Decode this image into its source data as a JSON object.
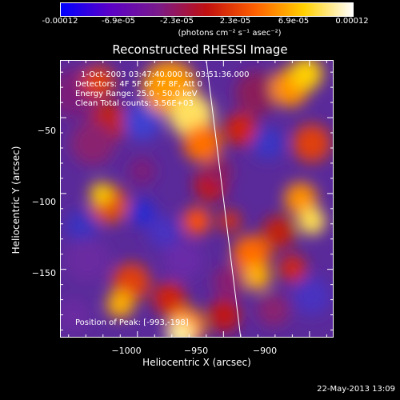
{
  "colorbar": {
    "ticks": [
      "-0.00012",
      "-6.9e-05",
      "-2.3e-05",
      "2.3e-05",
      "6.9e-05",
      "0.00012"
    ],
    "units": "(photons cm⁻² s⁻¹ asec⁻²)",
    "stops": [
      "#0000ff",
      "#5a00c8",
      "#7a1a8a",
      "#c01010",
      "#ff6000",
      "#ffd000",
      "#ffffff"
    ]
  },
  "chart_data": {
    "type": "heatmap",
    "title": "Reconstructed RHESSI Image",
    "xlabel": "Heliocentric X (arcsec)",
    "ylabel": "Heliocentric Y (arcsec)",
    "xlim": [
      -1045,
      -886
    ],
    "ylim": [
      -195,
      -12
    ],
    "xticks": [
      -1000,
      -950,
      -900
    ],
    "yticks": [
      -50,
      -100,
      -150
    ],
    "xtick_labels": [
      "−1000",
      "−950",
      "−900"
    ],
    "ytick_labels": [
      "−50",
      "−100",
      "−150"
    ],
    "colorbar_range": [
      -0.00012,
      0.00012
    ],
    "limb_line": [
      [
        -960,
        -12
      ],
      [
        -940,
        -195
      ]
    ],
    "annotations": {
      "time": "1-Oct-2003 03:47:40.000 to 03:51:36.000",
      "detectors": "Detectors: 4F 5F 6F 7F 8F, Att 0",
      "energy": "Energy Range: 25.0 - 50.0 keV",
      "clean": "Clean     Total counts: 3.56E+03",
      "peak": "Position of Peak: [-993,-198]"
    }
  },
  "footer": {
    "timestamp": "22-May-2013 13:09"
  }
}
